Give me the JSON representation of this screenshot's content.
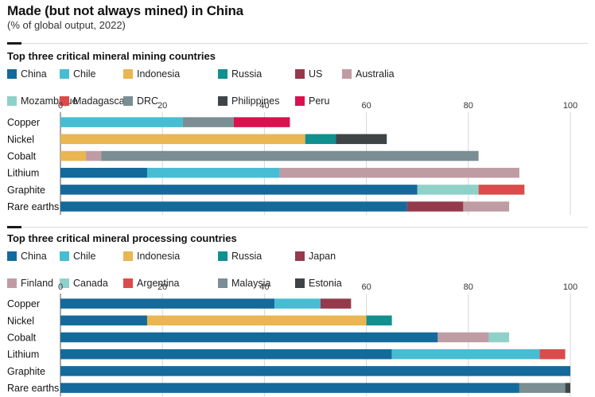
{
  "title": "Made (but not always mined) in China",
  "subtitle": "(% of global output, 2022)",
  "colors": {
    "China": "#146a9b",
    "Chile": "#47bdd3",
    "Indonesia": "#e9b652",
    "Russia": "#10908f",
    "US": "#953a4c",
    "Australia": "#bf9ca4",
    "Mozambique": "#8fd1c9",
    "Madagascar": "#dc4b4b",
    "DRC": "#7a8e93",
    "Philippines": "#3f4447",
    "Peru": "#d9124e",
    "Japan": "#953a4c",
    "Finland": "#bf9ca4",
    "Canada": "#8fd1c9",
    "Argentina": "#dc4b4b",
    "Malaysia": "#7a8e93",
    "Estonia": "#3f4447"
  },
  "chart_data": [
    {
      "type": "bar",
      "orientation": "horizontal",
      "stacked": true,
      "title": "Top three critical mineral mining countries",
      "legend": [
        [
          "China",
          "Chile",
          "Indonesia",
          "Russia",
          "US",
          "Australia"
        ],
        [
          "Mozambique",
          "Madagascar",
          "DRC",
          "Philippines",
          "Peru"
        ]
      ],
      "categories": [
        "Copper",
        "Nickel",
        "Cobalt",
        "Lithium",
        "Graphite",
        "Rare earths"
      ],
      "xlim": [
        0,
        100
      ],
      "xticks": [
        "0",
        "20",
        "40",
        "60",
        "80",
        "100"
      ],
      "bars": [
        [
          {
            "name": "Chile",
            "value": 24
          },
          {
            "name": "DRC",
            "value": 10
          },
          {
            "name": "Peru",
            "value": 11
          }
        ],
        [
          {
            "name": "Indonesia",
            "value": 48
          },
          {
            "name": "Russia",
            "value": 6
          },
          {
            "name": "Philippines",
            "value": 10
          }
        ],
        [
          {
            "name": "Indonesia",
            "value": 5
          },
          {
            "name": "Australia",
            "value": 3
          },
          {
            "name": "DRC",
            "value": 74
          }
        ],
        [
          {
            "name": "China",
            "value": 17
          },
          {
            "name": "Chile",
            "value": 26
          },
          {
            "name": "Australia",
            "value": 47
          }
        ],
        [
          {
            "name": "China",
            "value": 70
          },
          {
            "name": "Mozambique",
            "value": 12
          },
          {
            "name": "Madagascar",
            "value": 9
          }
        ],
        [
          {
            "name": "China",
            "value": 68
          },
          {
            "name": "US",
            "value": 11
          },
          {
            "name": "Australia",
            "value": 9
          }
        ]
      ]
    },
    {
      "type": "bar",
      "orientation": "horizontal",
      "stacked": true,
      "title": "Top three critical mineral processing countries",
      "legend": [
        [
          "China",
          "Chile",
          "Indonesia",
          "Russia",
          "Japan"
        ],
        [
          "Finland",
          "Canada",
          "Argentina",
          "Malaysia",
          "Estonia"
        ]
      ],
      "categories": [
        "Copper",
        "Nickel",
        "Cobalt",
        "Lithium",
        "Graphite",
        "Rare earths"
      ],
      "xlim": [
        0,
        100
      ],
      "xticks": [
        "0",
        "20",
        "40",
        "60",
        "80",
        "100"
      ],
      "bars": [
        [
          {
            "name": "China",
            "value": 42
          },
          {
            "name": "Chile",
            "value": 9
          },
          {
            "name": "Japan",
            "value": 6
          }
        ],
        [
          {
            "name": "China",
            "value": 17
          },
          {
            "name": "Indonesia",
            "value": 43
          },
          {
            "name": "Russia",
            "value": 5
          }
        ],
        [
          {
            "name": "China",
            "value": 74
          },
          {
            "name": "Finland",
            "value": 10
          },
          {
            "name": "Canada",
            "value": 4
          }
        ],
        [
          {
            "name": "China",
            "value": 65
          },
          {
            "name": "Chile",
            "value": 29
          },
          {
            "name": "Argentina",
            "value": 5
          }
        ],
        [
          {
            "name": "China",
            "value": 100
          }
        ],
        [
          {
            "name": "China",
            "value": 90
          },
          {
            "name": "Malaysia",
            "value": 9
          },
          {
            "name": "Estonia",
            "value": 1
          }
        ]
      ]
    }
  ]
}
